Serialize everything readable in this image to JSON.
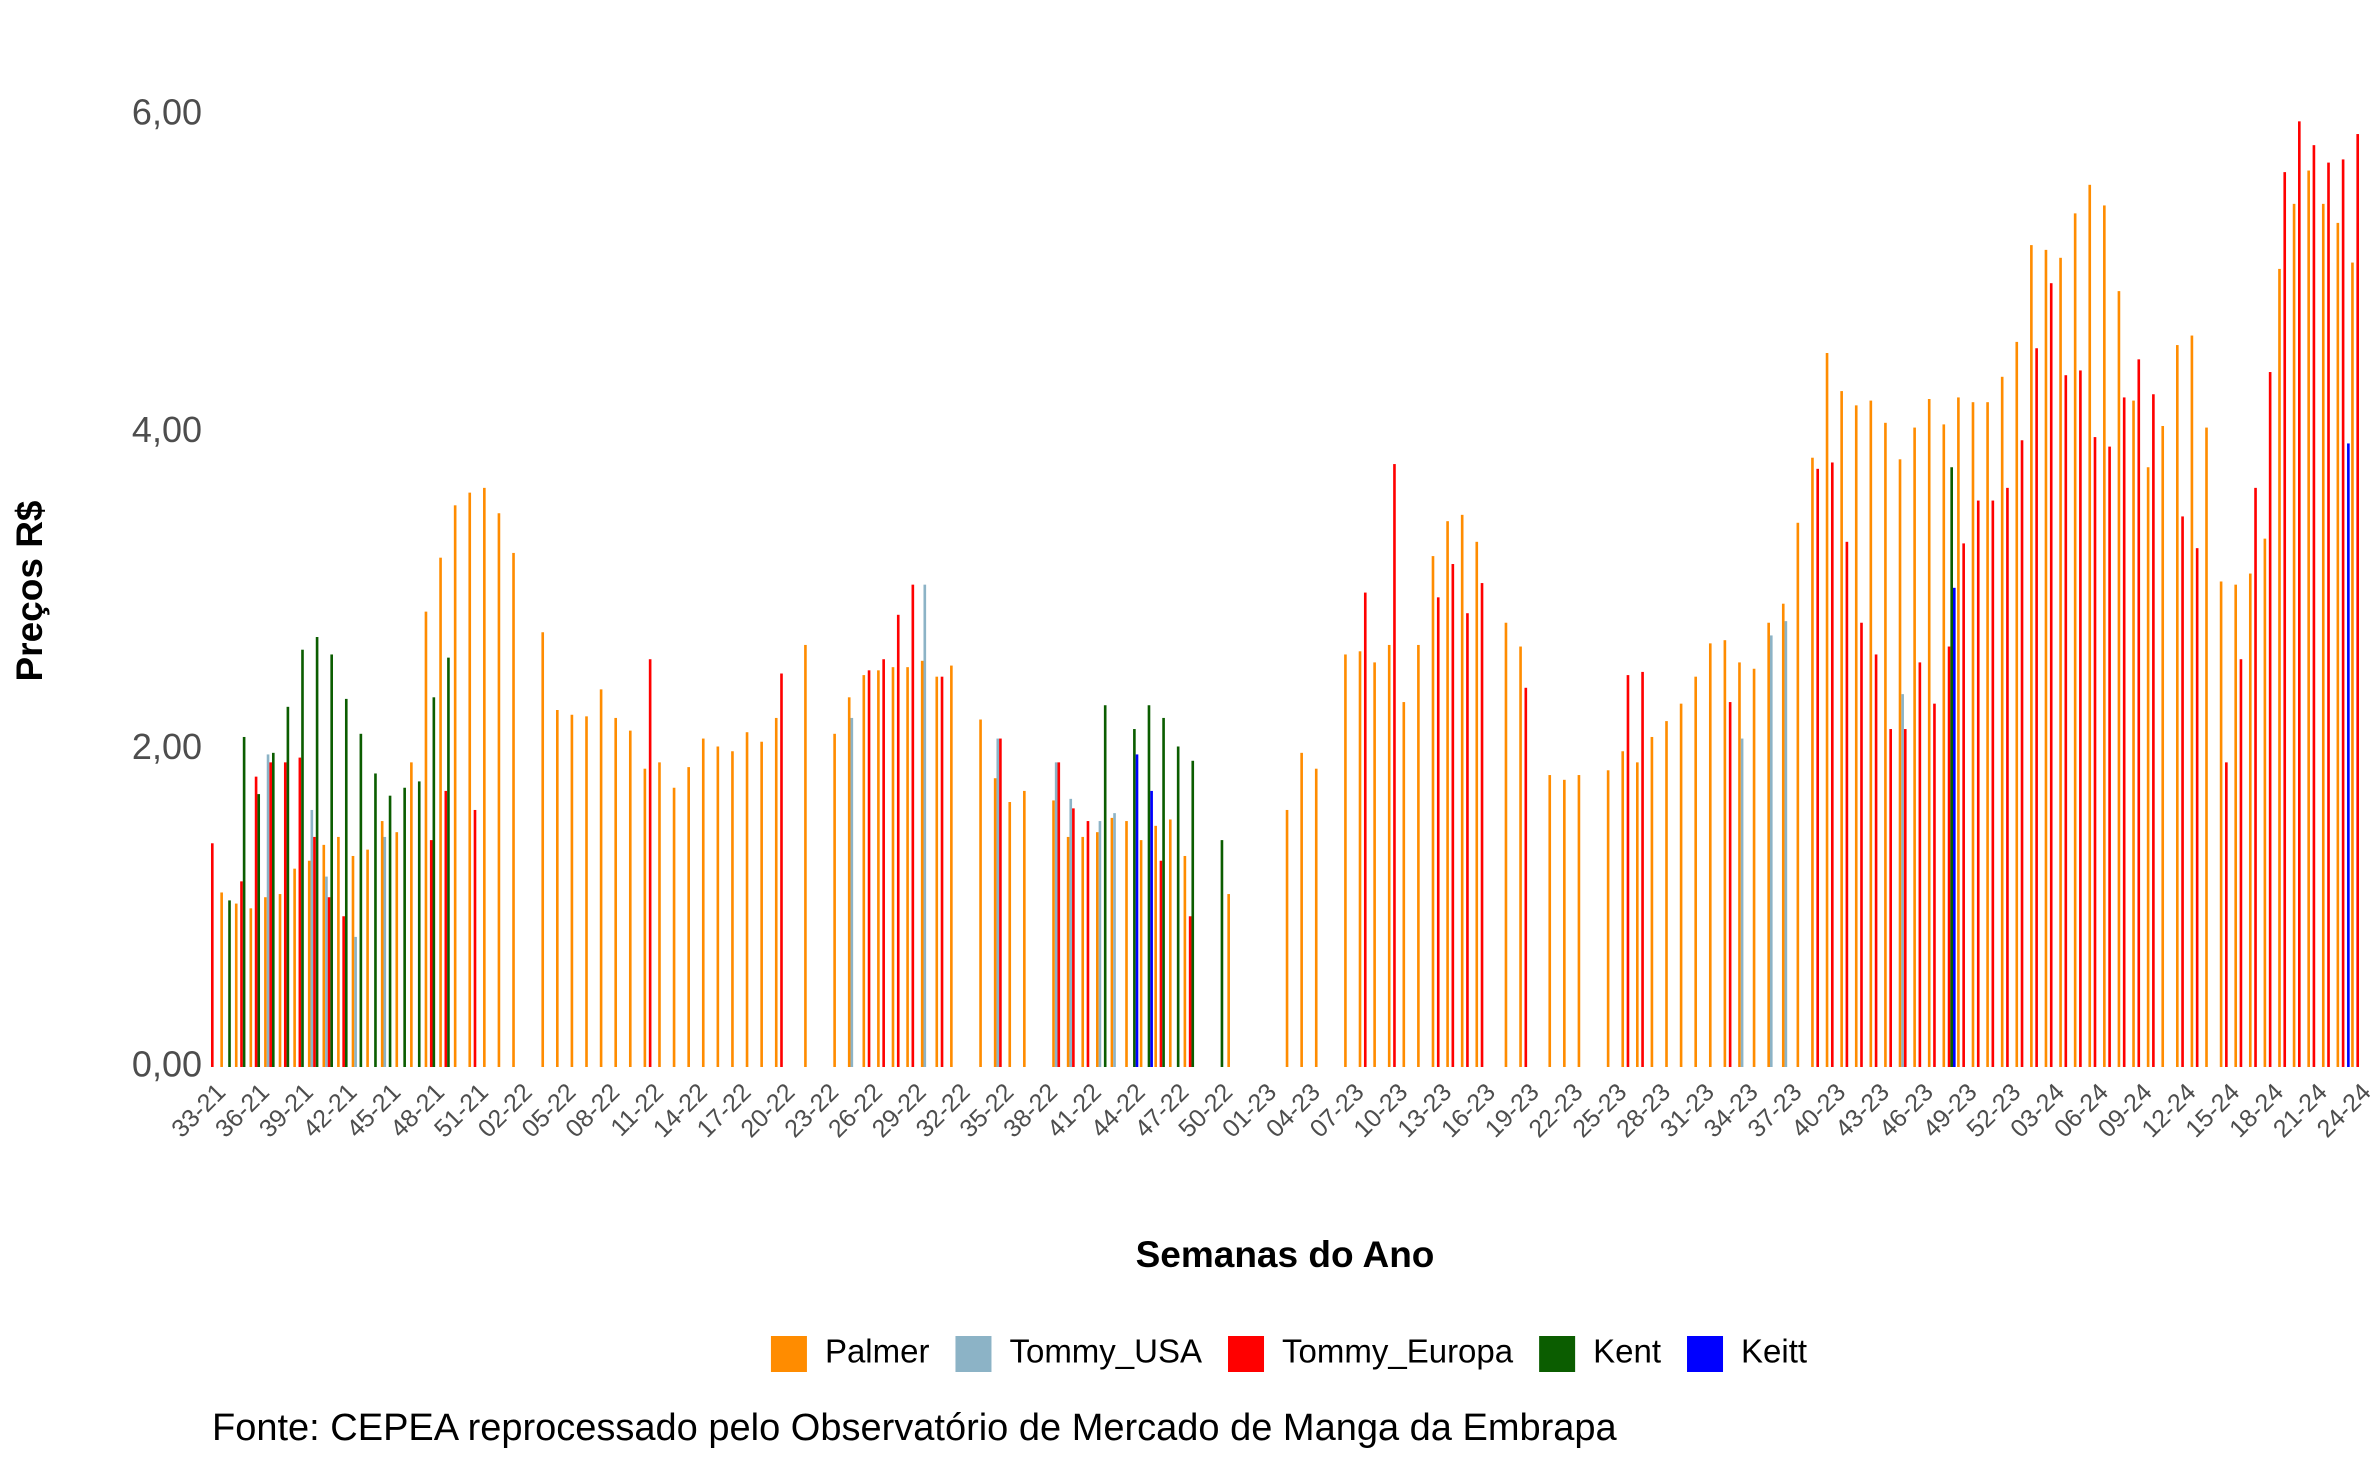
{
  "chart_data": {
    "type": "bar",
    "x_label": "Semanas do Ano",
    "y_label": "Preços R$",
    "caption": "Fonte: CEPEA reprocessado pelo Observatório de Mercado de Manga da Embrapa",
    "legend": "bottom",
    "grid": false,
    "ylim": [
      0,
      6
    ],
    "yticks": [
      {
        "value": 0,
        "label": "0,00"
      },
      {
        "value": 2,
        "label": "2,00"
      },
      {
        "value": 4,
        "label": "4,00"
      },
      {
        "value": 6,
        "label": "6,00"
      }
    ],
    "categories": [
      "33-21",
      null,
      null,
      "36-21",
      null,
      null,
      "39-21",
      null,
      null,
      "42-21",
      null,
      null,
      "45-21",
      null,
      null,
      "48-21",
      null,
      null,
      "51-21",
      null,
      null,
      "02-22",
      null,
      null,
      "05-22",
      null,
      null,
      "08-22",
      null,
      null,
      "11-22",
      null,
      null,
      "14-22",
      null,
      null,
      "17-22",
      null,
      null,
      "20-22",
      null,
      null,
      "23-22",
      null,
      null,
      "26-22",
      null,
      null,
      "29-22",
      null,
      null,
      "32-22",
      null,
      null,
      "35-22",
      null,
      null,
      "38-22",
      null,
      null,
      "41-22",
      null,
      null,
      "44-22",
      null,
      null,
      "47-22",
      null,
      null,
      "50-22",
      null,
      null,
      "01-23",
      null,
      null,
      "04-23",
      null,
      null,
      "07-23",
      null,
      null,
      "10-23",
      null,
      null,
      "13-23",
      null,
      null,
      "16-23",
      null,
      null,
      "19-23",
      null,
      null,
      "22-23",
      null,
      null,
      "25-23",
      null,
      null,
      "28-23",
      null,
      null,
      "31-23",
      null,
      null,
      "34-23",
      null,
      null,
      "37-23",
      null,
      null,
      "40-23",
      null,
      null,
      "43-23",
      null,
      null,
      "46-23",
      null,
      null,
      "49-23",
      null,
      null,
      "52-23",
      null,
      null,
      "03-24",
      null,
      null,
      "06-24",
      null,
      null,
      "09-24",
      null,
      null,
      "12-24",
      null,
      null,
      "15-24",
      null,
      null,
      "18-24",
      null,
      null,
      "21-24",
      null,
      null,
      "24-24"
    ],
    "series": [
      {
        "name": "Palmer",
        "color": "#ff8c00",
        "values": [
          null,
          1.1,
          1.03,
          1.0,
          1.07,
          1.09,
          1.25,
          1.3,
          1.4,
          1.45,
          1.33,
          1.37,
          1.55,
          1.48,
          1.92,
          2.87,
          3.21,
          3.54,
          3.62,
          3.65,
          3.49,
          3.24,
          null,
          2.74,
          2.25,
          2.22,
          2.21,
          2.38,
          2.2,
          2.12,
          1.88,
          1.92,
          1.76,
          1.89,
          2.07,
          2.02,
          1.99,
          2.11,
          2.05,
          2.2,
          null,
          2.66,
          null,
          2.1,
          2.33,
          2.47,
          2.5,
          2.52,
          2.52,
          2.56,
          2.46,
          2.53,
          null,
          2.19,
          1.82,
          1.67,
          1.74,
          null,
          1.68,
          1.45,
          1.45,
          1.48,
          1.57,
          1.55,
          1.43,
          1.52,
          1.56,
          1.33,
          null,
          null,
          1.09,
          null,
          null,
          null,
          1.62,
          1.98,
          1.88,
          null,
          2.6,
          2.62,
          2.55,
          2.66,
          2.3,
          2.66,
          3.22,
          3.44,
          3.48,
          3.31,
          null,
          2.8,
          2.65,
          null,
          1.84,
          1.81,
          1.84,
          null,
          1.87,
          1.99,
          1.92,
          2.08,
          2.18,
          2.29,
          2.46,
          2.67,
          2.69,
          2.55,
          2.51,
          2.8,
          2.92,
          3.43,
          3.84,
          4.5,
          4.26,
          4.17,
          4.2,
          4.06,
          3.83,
          4.03,
          4.21,
          4.05,
          4.22,
          4.19,
          4.19,
          4.35,
          4.57,
          5.18,
          5.15,
          5.1,
          5.38,
          5.56,
          5.43,
          4.89,
          4.2,
          3.78,
          4.04,
          4.55,
          4.61,
          4.03,
          3.06,
          3.04,
          3.11,
          3.33,
          5.03,
          5.44,
          5.65,
          5.44,
          5.32,
          5.07
        ]
      },
      {
        "name": "Tommy_USA",
        "color": "#8cb3c6",
        "values": [
          null,
          null,
          null,
          null,
          1.97,
          null,
          null,
          1.62,
          1.2,
          null,
          0.82,
          null,
          1.45,
          null,
          null,
          null,
          null,
          null,
          null,
          null,
          null,
          null,
          null,
          null,
          null,
          null,
          null,
          null,
          null,
          null,
          null,
          null,
          null,
          null,
          null,
          null,
          null,
          null,
          null,
          null,
          null,
          null,
          null,
          null,
          2.2,
          null,
          null,
          null,
          null,
          3.04,
          null,
          null,
          null,
          null,
          2.07,
          null,
          null,
          null,
          1.92,
          1.69,
          null,
          1.55,
          1.6,
          null,
          null,
          null,
          null,
          null,
          null,
          null,
          null,
          null,
          null,
          null,
          null,
          null,
          null,
          null,
          null,
          null,
          null,
          null,
          null,
          null,
          null,
          null,
          null,
          null,
          null,
          null,
          null,
          null,
          null,
          null,
          null,
          null,
          null,
          null,
          null,
          null,
          null,
          null,
          null,
          null,
          null,
          2.07,
          null,
          2.72,
          2.81,
          null,
          null,
          null,
          null,
          null,
          null,
          null,
          2.35,
          null,
          null,
          null,
          null,
          null,
          null,
          null,
          null,
          null,
          null,
          null,
          null,
          null,
          null,
          null,
          null,
          null,
          null,
          null,
          null,
          null,
          null,
          null,
          null,
          null,
          null,
          null,
          null,
          null,
          null,
          null
        ]
      },
      {
        "name": "Tommy_Europa",
        "color": "#ff0000",
        "values": [
          1.41,
          null,
          1.17,
          1.83,
          1.92,
          1.92,
          1.95,
          1.45,
          1.07,
          0.95,
          null,
          null,
          null,
          null,
          null,
          1.43,
          1.74,
          null,
          1.62,
          null,
          null,
          null,
          null,
          null,
          null,
          null,
          null,
          null,
          null,
          null,
          2.57,
          null,
          null,
          null,
          null,
          null,
          null,
          null,
          null,
          2.48,
          null,
          null,
          null,
          null,
          null,
          2.5,
          2.57,
          2.85,
          3.04,
          null,
          2.46,
          null,
          null,
          null,
          2.07,
          null,
          null,
          null,
          1.92,
          1.63,
          1.55,
          null,
          null,
          null,
          null,
          1.3,
          null,
          0.95,
          null,
          null,
          null,
          null,
          null,
          null,
          null,
          null,
          null,
          null,
          null,
          2.99,
          null,
          3.8,
          null,
          null,
          2.96,
          3.17,
          2.86,
          3.05,
          null,
          null,
          2.39,
          null,
          null,
          null,
          null,
          null,
          null,
          2.47,
          2.49,
          null,
          null,
          null,
          null,
          null,
          2.3,
          null,
          null,
          null,
          null,
          null,
          3.77,
          3.81,
          3.31,
          2.8,
          2.6,
          2.13,
          2.13,
          2.55,
          2.29,
          2.65,
          3.3,
          3.57,
          3.57,
          3.65,
          3.95,
          4.53,
          4.94,
          4.36,
          4.39,
          3.97,
          3.91,
          4.22,
          4.46,
          4.24,
          null,
          3.47,
          3.27,
          null,
          1.92,
          2.57,
          3.65,
          4.38,
          5.64,
          5.96,
          5.81,
          5.7,
          5.72,
          5.88
        ]
      },
      {
        "name": "Kent",
        "color": "#0b5d00",
        "values": [
          null,
          1.05,
          2.08,
          1.72,
          1.98,
          2.27,
          2.63,
          2.71,
          2.6,
          2.32,
          2.1,
          1.85,
          1.71,
          1.76,
          1.8,
          2.33,
          2.58,
          null,
          null,
          null,
          null,
          null,
          null,
          null,
          null,
          null,
          null,
          null,
          null,
          null,
          null,
          null,
          null,
          null,
          null,
          null,
          null,
          null,
          null,
          null,
          null,
          null,
          null,
          null,
          null,
          null,
          null,
          null,
          null,
          null,
          null,
          null,
          null,
          null,
          null,
          null,
          null,
          null,
          null,
          null,
          null,
          2.28,
          null,
          2.13,
          2.28,
          2.2,
          2.02,
          1.93,
          null,
          1.43,
          null,
          null,
          null,
          null,
          null,
          null,
          null,
          null,
          null,
          null,
          null,
          null,
          null,
          null,
          null,
          null,
          null,
          null,
          null,
          null,
          null,
          null,
          null,
          null,
          null,
          null,
          null,
          null,
          null,
          null,
          null,
          null,
          null,
          null,
          null,
          null,
          null,
          null,
          null,
          null,
          null,
          null,
          null,
          null,
          null,
          null,
          null,
          null,
          null,
          3.78,
          null,
          null,
          null,
          null,
          null,
          null,
          null,
          null,
          null,
          null,
          null,
          null,
          null,
          null,
          null,
          null,
          null,
          null,
          null,
          null,
          null,
          null,
          null,
          null,
          null,
          null,
          null,
          null
        ]
      },
      {
        "name": "Keitt",
        "color": "#0000ff",
        "values": [
          null,
          null,
          null,
          null,
          null,
          null,
          null,
          null,
          null,
          null,
          null,
          null,
          null,
          null,
          null,
          null,
          null,
          null,
          null,
          null,
          null,
          null,
          null,
          null,
          null,
          null,
          null,
          null,
          null,
          null,
          null,
          null,
          null,
          null,
          null,
          null,
          null,
          null,
          null,
          null,
          null,
          null,
          null,
          null,
          null,
          null,
          null,
          null,
          null,
          null,
          null,
          null,
          null,
          null,
          null,
          null,
          null,
          null,
          null,
          null,
          null,
          null,
          null,
          1.97,
          1.74,
          null,
          null,
          null,
          null,
          null,
          null,
          null,
          null,
          null,
          null,
          null,
          null,
          null,
          null,
          null,
          null,
          null,
          null,
          null,
          null,
          null,
          null,
          null,
          null,
          null,
          null,
          null,
          null,
          null,
          null,
          null,
          null,
          null,
          null,
          null,
          null,
          null,
          null,
          null,
          null,
          null,
          null,
          null,
          null,
          null,
          null,
          null,
          null,
          null,
          null,
          null,
          null,
          null,
          null,
          3.02,
          null,
          null,
          null,
          null,
          null,
          null,
          null,
          null,
          null,
          null,
          null,
          null,
          null,
          null,
          null,
          null,
          null,
          null,
          null,
          null,
          null,
          null,
          null,
          null,
          null,
          null,
          3.93,
          null
        ]
      }
    ]
  }
}
